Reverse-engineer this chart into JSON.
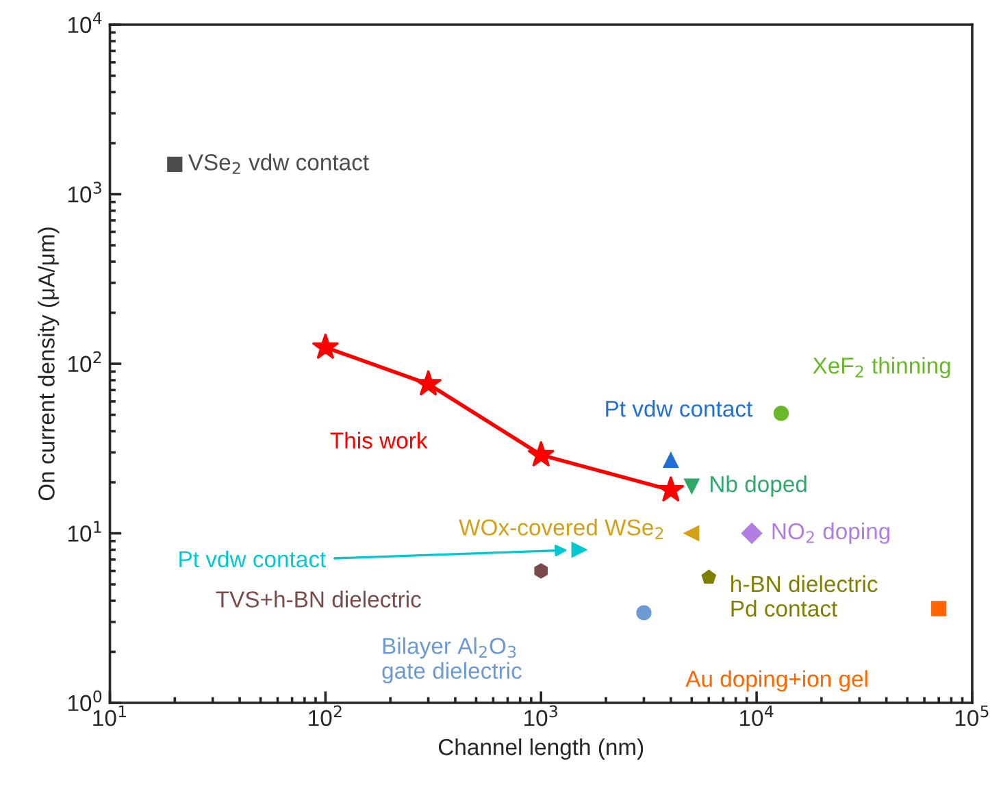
{
  "chart_data": {
    "type": "scatter",
    "xlabel": "Channel length (nm)",
    "ylabel": "On current density (μA/μm)",
    "log": "xy",
    "grid": false,
    "legend": false,
    "xlim": [
      10,
      100000
    ],
    "ylim": [
      1,
      10000
    ],
    "xticks": [
      {
        "value": 10,
        "label": "10$^{1}$"
      },
      {
        "value": 100,
        "label": "10$^{2}$"
      },
      {
        "value": 1000,
        "label": "10$^{3}$"
      },
      {
        "value": 10000,
        "label": "10$^{4}$"
      },
      {
        "value": 100000,
        "label": "10$^{5}$"
      }
    ],
    "yticks": [
      {
        "value": 1,
        "label": "10$^{0}$"
      },
      {
        "value": 10,
        "label": "10$^{1}$"
      },
      {
        "value": 100,
        "label": "10$^{2}$"
      },
      {
        "value": 1000,
        "label": "10$^{3}$"
      },
      {
        "value": 10000,
        "label": "10$^{4}$"
      }
    ],
    "series": [
      {
        "name": "VSe$_{2}$ vdw contact",
        "type": "scatter",
        "marker": "square",
        "color": "#4d4d4d",
        "x": [
          20
        ],
        "values": [
          1500
        ]
      },
      {
        "name": "This work",
        "type": "line",
        "marker": "star",
        "color": "#ff0000",
        "x": [
          100,
          300,
          1000,
          4000
        ],
        "values": [
          125,
          76,
          29,
          18
        ]
      },
      {
        "name": "Pt vdw contact",
        "type": "scatter",
        "marker": "triangle",
        "color": "#1f6fd6",
        "x": [
          4000
        ],
        "values": [
          27
        ]
      },
      {
        "name": "Nb doped",
        "type": "scatter",
        "marker": "triangle_down",
        "color": "#2ea86b",
        "x": [
          5000
        ],
        "values": [
          19
        ]
      },
      {
        "name": "XeF$_{2}$ thinning",
        "type": "scatter",
        "marker": "circle",
        "color": "#6ab82a",
        "x": [
          13000
        ],
        "values": [
          51
        ]
      },
      {
        "name": "WOx-covered WSe$_{2}$",
        "type": "scatter",
        "marker": "triangle_left",
        "color": "#d4a017",
        "x": [
          5000
        ],
        "values": [
          10
        ]
      },
      {
        "name": "NO$_{2}$ doping",
        "type": "scatter",
        "marker": "diamond",
        "color": "#b07ee0",
        "x": [
          9500
        ],
        "values": [
          10
        ]
      },
      {
        "name": "Pt vdw contact",
        "type": "scatter",
        "marker": "triangle_right",
        "color": "#00c8d0",
        "x": [
          1500
        ],
        "values": [
          8
        ]
      },
      {
        "name": "TVS+h-BN dielectric",
        "color": "#7a4a4a",
        "x": [
          1000
        ],
        "values": [
          6
        ]
      },
      {
        "name": "h-BN dielectric\nPd contact",
        "color": "#808000",
        "x": [
          6000
        ],
        "values": [
          5.5
        ]
      },
      {
        "name": "Bilayer Al$_{2}$O$_{3}$\ngate dielectric",
        "type": "scatter",
        "marker": "circle",
        "color": "#6b9bd2",
        "x": [
          3000
        ],
        "values": [
          3.4
        ]
      },
      {
        "name": "Au doping+ion gel",
        "type": "scatter",
        "marker": "square",
        "color": "#ff6600",
        "x": [
          70000
        ],
        "values": [
          3.6
        ]
      }
    ]
  }
}
